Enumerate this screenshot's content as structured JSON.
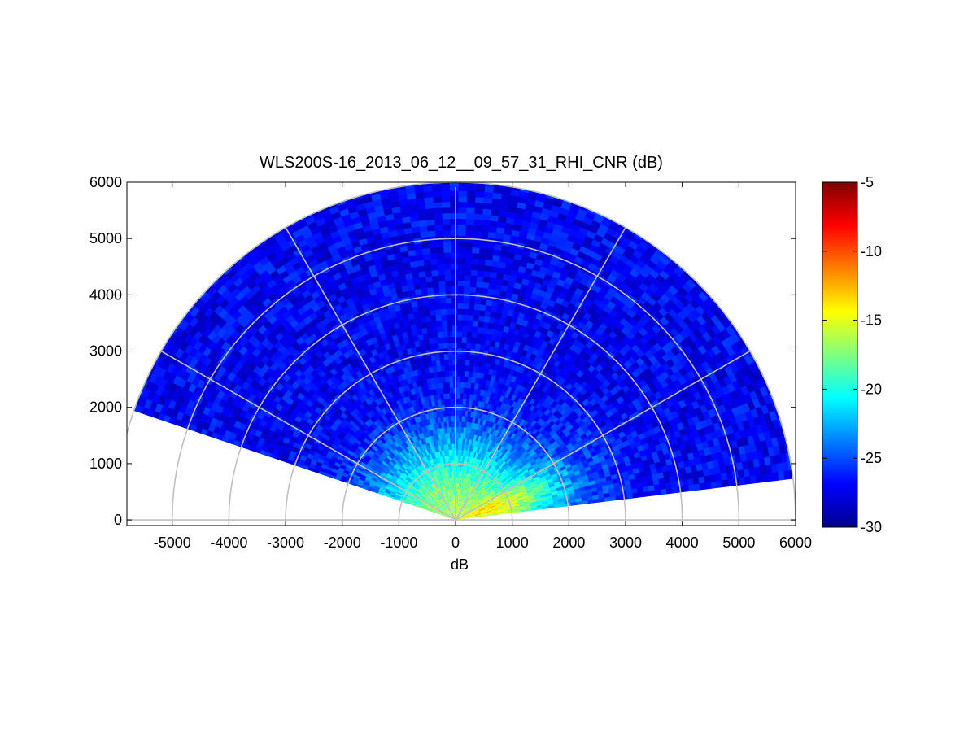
{
  "chart_data": {
    "type": "heatmap",
    "projection": "polar-rhi-sector",
    "title": "WLS200S-16_2013_06_12__09_57_31_RHI_CNR (dB)",
    "xlabel": "dB",
    "ylabel": "",
    "xlim": [
      -5800,
      6000
    ],
    "ylim": [
      -100,
      6000
    ],
    "x_ticks": [
      -5000,
      -4000,
      -3000,
      -2000,
      -1000,
      0,
      1000,
      2000,
      3000,
      4000,
      5000,
      6000
    ],
    "y_ticks": [
      0,
      1000,
      2000,
      3000,
      4000,
      5000,
      6000
    ],
    "range_rings": [
      1000,
      2000,
      3000,
      4000,
      5000,
      6000
    ],
    "spokes_deg": [
      0,
      30,
      60,
      90,
      120,
      150,
      180
    ],
    "sector": {
      "max_range": 6000,
      "elevation_deg_min": 7,
      "elevation_deg_max": 161,
      "plotted_range_min_deg": 7,
      "plotted_range_max_deg": 161
    },
    "colorbar": {
      "colormap": "jet",
      "clim": [
        -30,
        -5
      ],
      "ticks": [
        -30,
        -25,
        -20,
        -15,
        -10,
        -5
      ]
    },
    "field_summary": [
      {
        "region": "near range 0-1500 m, low elevation right (~10-30 deg)",
        "cnr_db": -16
      },
      {
        "region": "near range 0-1800 m, mid elevation (~40-140 deg)",
        "cnr_db": -20
      },
      {
        "region": "near range 1500-2500 m, right low elevation",
        "cnr_db": -24
      },
      {
        "region": "far range 2500-6000 m, all elevations",
        "cnr_db": -27
      }
    ]
  }
}
